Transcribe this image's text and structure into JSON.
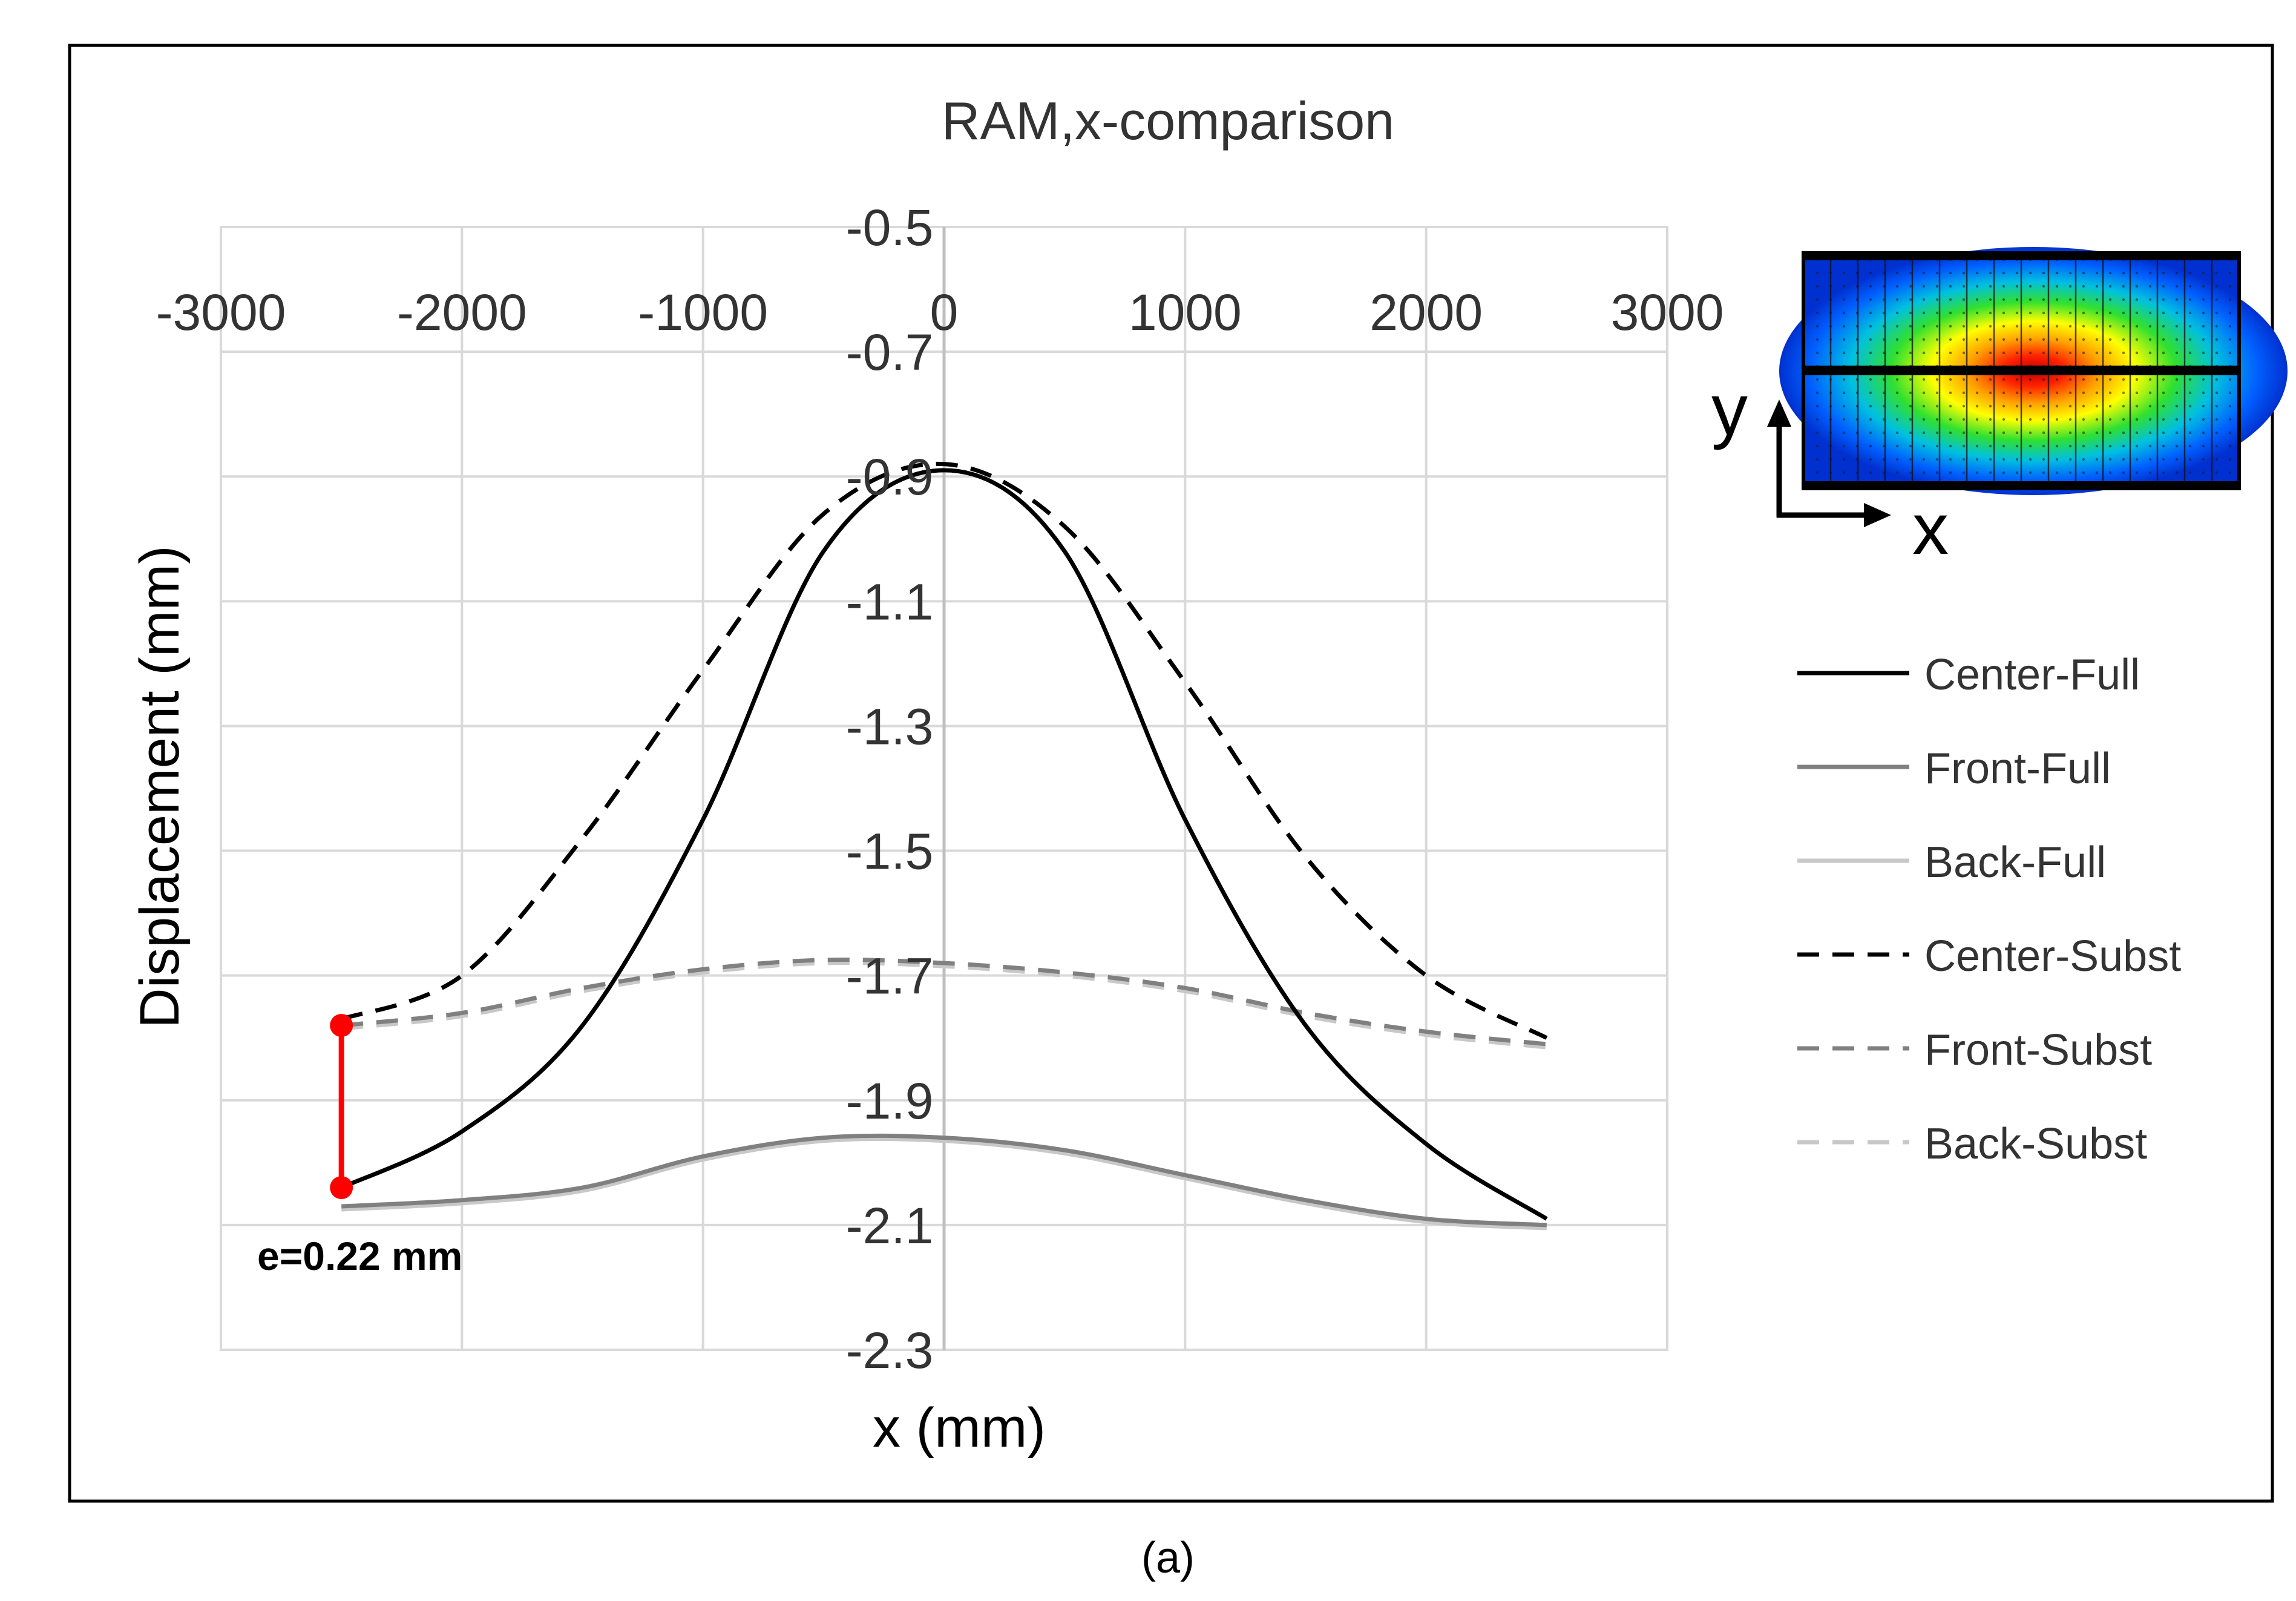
{
  "chart_data": {
    "type": "line",
    "title": "RAM,x-comparison",
    "xlabel": "x (mm)",
    "ylabel": "Displacement (mm)",
    "xlim": [
      -3000,
      3000
    ],
    "ylim": [
      -2.3,
      -0.5
    ],
    "x_ticks": [
      -3000,
      -2000,
      -1000,
      0,
      1000,
      2000,
      3000
    ],
    "x_tick_labels": [
      "-3000",
      "-2000",
      "-1000",
      "0",
      "1000",
      "2000",
      "3000"
    ],
    "y_ticks": [
      -0.5,
      -0.7,
      -0.9,
      -1.1,
      -1.3,
      -1.5,
      -1.7,
      -1.9,
      -2.1,
      -2.3
    ],
    "y_tick_labels": [
      "-0.5",
      "-0.7",
      "-0.9",
      "-1.1",
      "-1.3",
      "-1.5",
      "-1.7",
      "-1.9",
      "-2.1",
      "-2.3"
    ],
    "x_axis_position": "top",
    "y_axis_crosses_at": 0,
    "grid": true,
    "legend_position": "right",
    "x": [
      -2500,
      -2000,
      -1500,
      -1000,
      -500,
      0,
      500,
      1000,
      1500,
      2000,
      2500
    ],
    "series": [
      {
        "name": "Center-Full",
        "color": "#000000",
        "dash": "solid",
        "values": [
          -2.04,
          -1.95,
          -1.78,
          -1.45,
          -1.02,
          -0.89,
          -1.02,
          -1.45,
          -1.78,
          -1.97,
          -2.09
        ]
      },
      {
        "name": "Front-Full",
        "color": "#808080",
        "dash": "solid",
        "values": [
          -2.07,
          -2.06,
          -2.04,
          -1.99,
          -1.96,
          -1.96,
          -1.98,
          -2.02,
          -2.06,
          -2.09,
          -2.1
        ]
      },
      {
        "name": "Back-Full",
        "color": "#c8c8c8",
        "dash": "solid",
        "values": [
          -2.075,
          -2.065,
          -2.045,
          -1.995,
          -1.965,
          -1.965,
          -1.985,
          -2.025,
          -2.065,
          -2.095,
          -2.105
        ]
      },
      {
        "name": "Center-Subst",
        "color": "#000000",
        "dash": "dashed",
        "values": [
          -1.77,
          -1.7,
          -1.48,
          -1.21,
          -0.96,
          -0.88,
          -0.98,
          -1.23,
          -1.51,
          -1.7,
          -1.8
        ]
      },
      {
        "name": "Front-Subst",
        "color": "#808080",
        "dash": "dashed",
        "values": [
          -1.78,
          -1.76,
          -1.72,
          -1.69,
          -1.675,
          -1.68,
          -1.695,
          -1.72,
          -1.76,
          -1.79,
          -1.81
        ]
      },
      {
        "name": "Back-Subst",
        "color": "#c8c8c8",
        "dash": "dashed",
        "values": [
          -1.785,
          -1.765,
          -1.725,
          -1.695,
          -1.68,
          -1.685,
          -1.7,
          -1.725,
          -1.765,
          -1.795,
          -1.815
        ]
      }
    ],
    "annotation": {
      "text": "e=0.22 mm",
      "x": -2500,
      "y_top": -1.78,
      "y_bottom": -2.04,
      "color": "#ff0000"
    }
  },
  "inset": {
    "x_axis_label": "x",
    "y_axis_label": "y"
  },
  "caption": "(a)"
}
